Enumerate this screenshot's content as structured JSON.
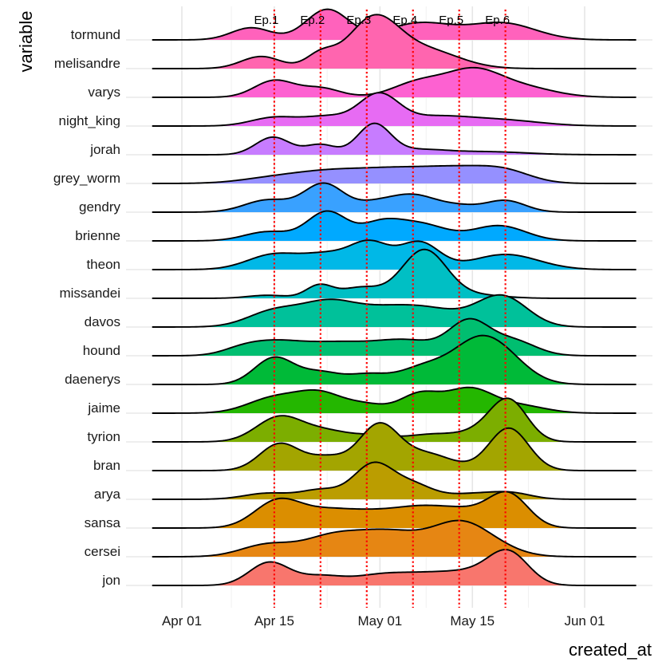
{
  "chart_data": {
    "type": "ridgeline",
    "xlabel": "created_at",
    "ylabel": "variable",
    "x_ticks": [
      {
        "label": "Apr 01",
        "day": 0
      },
      {
        "label": "Apr 15",
        "day": 14
      },
      {
        "label": "May 01",
        "day": 30
      },
      {
        "label": "May 15",
        "day": 44
      },
      {
        "label": "Jun 01",
        "day": 61
      }
    ],
    "xlim_days": [
      -4.5,
      68.8
    ],
    "density_range_days": [
      -4.5,
      68.8
    ],
    "episodes": [
      {
        "label": "Ep.1",
        "day": 14.0
      },
      {
        "label": "Ep.2",
        "day": 21.0
      },
      {
        "label": "Ep.3",
        "day": 28.0
      },
      {
        "label": "Ep.4",
        "day": 35.0
      },
      {
        "label": "Ep.5",
        "day": 42.0
      },
      {
        "label": "Ep.6",
        "day": 49.0
      }
    ],
    "gridline_days": [
      0,
      7.5,
      14,
      22,
      30,
      37,
      44,
      52.5,
      61
    ],
    "series": [
      {
        "name": "tormund",
        "color": "#FF62BC",
        "components": [
          [
            10.5,
            3,
            0.4
          ],
          [
            22,
            3.2,
            1.0
          ],
          [
            36,
            5,
            0.55
          ],
          [
            48.5,
            5,
            0.55
          ]
        ]
      },
      {
        "name": "melisandre",
        "color": "#FF65AF",
        "components": [
          [
            12,
            3,
            0.4
          ],
          [
            21,
            2.2,
            0.45
          ],
          [
            29,
            3.8,
            1.6
          ],
          [
            37,
            5,
            0.6
          ]
        ]
      },
      {
        "name": "varys",
        "color": "#FD61D1",
        "components": [
          [
            14,
            3,
            0.55
          ],
          [
            21,
            3,
            0.3
          ],
          [
            36,
            4,
            0.5
          ],
          [
            44,
            4,
            0.78
          ],
          [
            51,
            5,
            0.35
          ]
        ]
      },
      {
        "name": "night_king",
        "color": "#E76BF3",
        "components": [
          [
            14,
            3.5,
            0.28
          ],
          [
            22,
            3.5,
            0.3
          ],
          [
            29.8,
            3,
            1.0
          ],
          [
            38,
            5,
            0.28
          ],
          [
            48,
            6,
            0.2
          ]
        ]
      },
      {
        "name": "jorah",
        "color": "#C77CFF",
        "components": [
          [
            13.8,
            2.6,
            0.58
          ],
          [
            21,
            2.3,
            0.33
          ],
          [
            29.1,
            2.5,
            1.0
          ],
          [
            36,
            4,
            0.15
          ],
          [
            46,
            6,
            0.1
          ]
        ]
      },
      {
        "name": "grey_worm",
        "color": "#9590FF",
        "components": [
          [
            14,
            5,
            0.18
          ],
          [
            22,
            5,
            0.3
          ],
          [
            32,
            6,
            0.45
          ],
          [
            42,
            5,
            0.4
          ],
          [
            49,
            4,
            0.35
          ]
        ]
      },
      {
        "name": "gendry",
        "color": "#39A1FF",
        "components": [
          [
            13,
            3.5,
            0.4
          ],
          [
            21.5,
            3,
            0.93
          ],
          [
            29,
            3,
            0.25
          ],
          [
            35,
            3.5,
            0.55
          ],
          [
            42,
            3,
            0.18
          ],
          [
            49,
            3,
            0.38
          ]
        ]
      },
      {
        "name": "brienne",
        "color": "#00A9FF",
        "components": [
          [
            13,
            3.5,
            0.3
          ],
          [
            22,
            3,
            0.96
          ],
          [
            30,
            3,
            0.5
          ],
          [
            36,
            4,
            0.55
          ],
          [
            48,
            4,
            0.5
          ]
        ]
      },
      {
        "name": "theon",
        "color": "#00B8E7",
        "components": [
          [
            14,
            4,
            0.5
          ],
          [
            22,
            3.5,
            0.45
          ],
          [
            28.5,
            3,
            0.85
          ],
          [
            36,
            3,
            0.88
          ],
          [
            49,
            5,
            0.5
          ]
        ]
      },
      {
        "name": "missandei",
        "color": "#00BFC4",
        "components": [
          [
            13,
            3,
            0.1
          ],
          [
            20.8,
            2,
            0.42
          ],
          [
            27,
            3,
            0.35
          ],
          [
            36.7,
            3.4,
            1.6
          ],
          [
            45,
            4,
            0.1
          ]
        ]
      },
      {
        "name": "davos",
        "color": "#00C19A",
        "components": [
          [
            14,
            4,
            0.52
          ],
          [
            22,
            4,
            0.7
          ],
          [
            30,
            5,
            0.5
          ],
          [
            38,
            5,
            0.5
          ],
          [
            48.5,
            3.8,
            1.0
          ]
        ]
      },
      {
        "name": "hound",
        "color": "#00BE70",
        "components": [
          [
            9,
            3,
            0.18
          ],
          [
            14,
            4,
            0.4
          ],
          [
            23,
            5,
            0.4
          ],
          [
            34,
            5,
            0.5
          ],
          [
            43.5,
            3,
            1.05
          ],
          [
            50,
            3.5,
            0.5
          ]
        ]
      },
      {
        "name": "daenerys",
        "color": "#00BA38",
        "components": [
          [
            14,
            3,
            0.88
          ],
          [
            21,
            3,
            0.38
          ],
          [
            28,
            3,
            0.3
          ],
          [
            37,
            4,
            0.6
          ],
          [
            44,
            3.5,
            0.8
          ],
          [
            48,
            4,
            1.0
          ]
        ]
      },
      {
        "name": "jaime",
        "color": "#24B700",
        "components": [
          [
            14,
            4,
            0.5
          ],
          [
            21,
            3.5,
            0.62
          ],
          [
            28,
            3,
            0.25
          ],
          [
            36,
            3,
            0.62
          ],
          [
            43.5,
            3.5,
            0.78
          ],
          [
            51,
            4,
            0.25
          ]
        ]
      },
      {
        "name": "tyrion",
        "color": "#7CAE00",
        "components": [
          [
            14.8,
            3.5,
            0.82
          ],
          [
            22,
            3.5,
            0.33
          ],
          [
            29,
            3,
            0.18
          ],
          [
            38,
            4,
            0.25
          ],
          [
            45,
            3,
            0.25
          ],
          [
            49.5,
            2.8,
            1.35
          ]
        ]
      },
      {
        "name": "bran",
        "color": "#A3A500",
        "components": [
          [
            14.8,
            3,
            0.88
          ],
          [
            22,
            3,
            0.42
          ],
          [
            29.8,
            3,
            1.45
          ],
          [
            37,
            4,
            0.55
          ],
          [
            49.5,
            3,
            1.4
          ]
        ]
      },
      {
        "name": "arya",
        "color": "#BB9D00",
        "components": [
          [
            13,
            3.5,
            0.2
          ],
          [
            21,
            3,
            0.3
          ],
          [
            29,
            3,
            1.15
          ],
          [
            35,
            3,
            0.45
          ],
          [
            44,
            4,
            0.18
          ],
          [
            50,
            3,
            0.18
          ]
        ]
      },
      {
        "name": "sansa",
        "color": "#DB8E00",
        "components": [
          [
            14.5,
            3.5,
            0.88
          ],
          [
            22,
            4,
            0.5
          ],
          [
            29,
            4,
            0.4
          ],
          [
            36,
            4,
            0.55
          ],
          [
            43,
            4,
            0.5
          ],
          [
            49.5,
            3,
            1.05
          ]
        ]
      },
      {
        "name": "cersei",
        "color": "#E68613",
        "components": [
          [
            13,
            4,
            0.4
          ],
          [
            22,
            4,
            0.45
          ],
          [
            31,
            6,
            0.85
          ],
          [
            42,
            4,
            0.9
          ],
          [
            47,
            4,
            0.3
          ]
        ]
      },
      {
        "name": "jon",
        "color": "#F8766D",
        "components": [
          [
            13.2,
            3,
            0.75
          ],
          [
            21,
            3.5,
            0.3
          ],
          [
            30,
            4,
            0.32
          ],
          [
            37,
            4,
            0.3
          ],
          [
            44,
            4,
            0.38
          ],
          [
            49.5,
            3,
            1.02
          ]
        ]
      }
    ]
  }
}
